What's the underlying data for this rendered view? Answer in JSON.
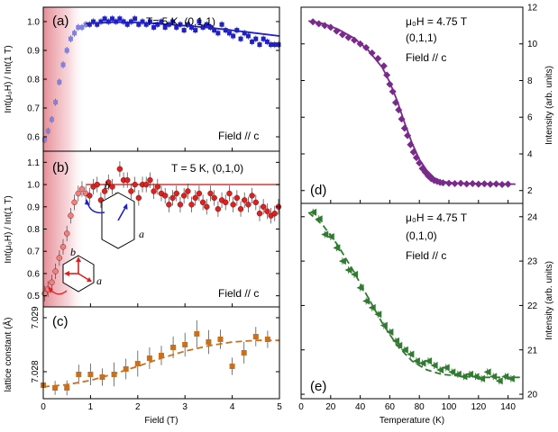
{
  "colors": {
    "blue": "#2020c8",
    "lightblue": "#8080e0",
    "red": "#dd2020",
    "lightred": "#f08080",
    "brown": "#c8701e",
    "purple": "#7a2a8c",
    "green": "#2e7d2e",
    "shade": "#d03040"
  },
  "chart_data": [
    {
      "id": "a",
      "type": "scatter",
      "panel_label": "(a)",
      "annotation": "T= 5 K, (0,1,1)",
      "field_label": "Field // c",
      "ylabel": "Int(μ₀H) / Int(1 T)",
      "xlim": [
        0,
        5
      ],
      "ylim": [
        0.55,
        1.05
      ],
      "yticks": [
        0.6,
        0.7,
        0.8,
        0.9,
        1.0
      ],
      "ytick_labels": [
        "0.6",
        "0.7",
        "0.8",
        "0.9",
        "1.0"
      ],
      "shaded_region": [
        0,
        0.9
      ],
      "points_faded": [
        [
          0.03,
          0.59
        ],
        [
          0.1,
          0.62
        ],
        [
          0.18,
          0.66
        ],
        [
          0.26,
          0.72
        ],
        [
          0.34,
          0.79
        ],
        [
          0.42,
          0.85
        ],
        [
          0.5,
          0.9
        ],
        [
          0.58,
          0.94
        ],
        [
          0.66,
          0.96
        ],
        [
          0.74,
          0.98
        ],
        [
          0.82,
          0.98
        ],
        [
          0.9,
          0.99
        ]
      ],
      "points": [
        [
          0.98,
          0.99
        ],
        [
          1.06,
          1.0
        ],
        [
          1.14,
          0.99
        ],
        [
          1.22,
          1.0
        ],
        [
          1.3,
          1.01
        ],
        [
          1.38,
          1.0
        ],
        [
          1.46,
          1.01
        ],
        [
          1.54,
          1.0
        ],
        [
          1.62,
          1.01
        ],
        [
          1.7,
          1.0
        ],
        [
          1.78,
          0.99
        ],
        [
          1.86,
          1.0
        ],
        [
          1.94,
          1.01
        ],
        [
          2.02,
          0.99
        ],
        [
          2.1,
          1.0
        ],
        [
          2.18,
          0.99
        ],
        [
          2.26,
          1.0
        ],
        [
          2.34,
          0.98
        ],
        [
          2.42,
          0.99
        ],
        [
          2.5,
          1.0
        ],
        [
          2.58,
          0.98
        ],
        [
          2.66,
          0.99
        ],
        [
          2.74,
          1.0
        ],
        [
          2.82,
          0.98
        ],
        [
          2.9,
          0.99
        ],
        [
          2.98,
          0.97
        ],
        [
          3.06,
          0.99
        ],
        [
          3.14,
          0.98
        ],
        [
          3.22,
          0.97
        ],
        [
          3.3,
          1.0
        ],
        [
          3.38,
          0.98
        ],
        [
          3.46,
          0.99
        ],
        [
          3.54,
          0.98
        ],
        [
          3.62,
          0.97
        ],
        [
          3.7,
          0.96
        ],
        [
          3.78,
          0.99
        ],
        [
          3.86,
          0.97
        ],
        [
          3.94,
          0.96
        ],
        [
          4.02,
          0.95
        ],
        [
          4.1,
          0.97
        ],
        [
          4.18,
          0.94
        ],
        [
          4.26,
          0.96
        ],
        [
          4.34,
          0.95
        ],
        [
          4.42,
          0.93
        ],
        [
          4.5,
          0.94
        ],
        [
          4.58,
          0.92
        ],
        [
          4.66,
          0.94
        ],
        [
          4.74,
          0.93
        ],
        [
          4.82,
          0.92
        ],
        [
          4.9,
          0.92
        ],
        [
          4.98,
          0.92
        ]
      ],
      "fit": [
        [
          0.9,
          0.993
        ],
        [
          1.5,
          0.998
        ],
        [
          2.0,
          0.997
        ],
        [
          2.5,
          0.992
        ],
        [
          3.0,
          0.986
        ],
        [
          3.5,
          0.979
        ],
        [
          4.0,
          0.97
        ],
        [
          4.5,
          0.96
        ],
        [
          5.0,
          0.95
        ]
      ]
    },
    {
      "id": "b",
      "type": "scatter",
      "panel_label": "(b)",
      "annotation": "T = 5 K, (0,1,0)",
      "field_label": "Field // c",
      "ylabel": "Int(μ₀H) / Int(1 T)",
      "xlim": [
        0,
        5
      ],
      "ylim": [
        0.45,
        1.15
      ],
      "yticks": [
        0.5,
        0.6,
        0.7,
        0.8,
        0.9,
        1.0,
        1.1
      ],
      "ytick_labels": [
        "0.5",
        "0.6",
        "0.7",
        "0.8",
        "0.9",
        "1.0",
        "1.1"
      ],
      "shaded_region": [
        0,
        0.9
      ],
      "reference_line": 1.0,
      "reference_line_from": 0.9,
      "points_faded": [
        [
          0.03,
          0.51
        ],
        [
          0.1,
          0.53
        ],
        [
          0.18,
          0.56
        ],
        [
          0.26,
          0.61
        ],
        [
          0.34,
          0.67
        ],
        [
          0.42,
          0.72
        ],
        [
          0.5,
          0.78
        ],
        [
          0.58,
          0.86
        ],
        [
          0.66,
          0.92
        ],
        [
          0.74,
          0.96
        ],
        [
          0.82,
          0.98
        ],
        [
          0.9,
          0.96
        ]
      ],
      "points": [
        [
          0.98,
          0.95
        ],
        [
          1.06,
          0.99
        ],
        [
          1.14,
          1.0
        ],
        [
          1.22,
          0.93
        ],
        [
          1.3,
          0.97
        ],
        [
          1.38,
          1.01
        ],
        [
          1.46,
          0.99
        ],
        [
          1.54,
          0.93
        ],
        [
          1.62,
          1.07
        ],
        [
          1.7,
          1.02
        ],
        [
          1.78,
          1.02
        ],
        [
          1.86,
          0.97
        ],
        [
          1.94,
          1.0
        ],
        [
          2.02,
          0.94
        ],
        [
          2.1,
          1.0
        ],
        [
          2.18,
          1.0
        ],
        [
          2.26,
          1.02
        ],
        [
          2.34,
          0.97
        ],
        [
          2.42,
          0.99
        ],
        [
          2.5,
          0.96
        ],
        [
          2.58,
          0.95
        ],
        [
          2.66,
          0.91
        ],
        [
          2.74,
          0.94
        ],
        [
          2.82,
          0.96
        ],
        [
          2.9,
          0.91
        ],
        [
          2.98,
          0.95
        ],
        [
          3.06,
          0.97
        ],
        [
          3.14,
          0.91
        ],
        [
          3.22,
          0.94
        ],
        [
          3.3,
          0.96
        ],
        [
          3.38,
          0.92
        ],
        [
          3.46,
          0.9
        ],
        [
          3.54,
          0.96
        ],
        [
          3.62,
          0.94
        ],
        [
          3.7,
          0.89
        ],
        [
          3.78,
          0.93
        ],
        [
          3.86,
          0.92
        ],
        [
          3.94,
          0.96
        ],
        [
          4.02,
          0.91
        ],
        [
          4.1,
          0.94
        ],
        [
          4.18,
          0.89
        ],
        [
          4.26,
          0.93
        ],
        [
          4.34,
          0.91
        ],
        [
          4.42,
          0.95
        ],
        [
          4.5,
          0.92
        ],
        [
          4.58,
          0.87
        ],
        [
          4.66,
          0.9
        ],
        [
          4.74,
          0.88
        ],
        [
          4.82,
          0.86
        ],
        [
          4.9,
          0.87
        ],
        [
          4.98,
          0.9
        ]
      ],
      "inset_axis_a": "a",
      "inset_axis_b": "b"
    },
    {
      "id": "c",
      "type": "scatter",
      "panel_label": "(c)",
      "ylabel": "lattice constant (Å)",
      "xlabel": "Field (T)",
      "xlim": [
        0,
        5
      ],
      "ylim": [
        7.0275,
        7.0292
      ],
      "yticks": [
        7.028,
        7.029
      ],
      "ytick_labels": [
        "7.028",
        "7.029"
      ],
      "xticks": [
        0,
        1,
        2,
        3,
        4,
        5
      ],
      "xtick_labels": [
        "0",
        "1",
        "2",
        "3",
        "4",
        "5"
      ],
      "points": [
        [
          0.0,
          7.02775
        ],
        [
          0.25,
          7.0277
        ],
        [
          0.5,
          7.0277
        ],
        [
          0.75,
          7.02795
        ],
        [
          1.0,
          7.02795
        ],
        [
          1.25,
          7.0279
        ],
        [
          1.5,
          7.02795
        ],
        [
          1.75,
          7.02805
        ],
        [
          2.0,
          7.02815
        ],
        [
          2.25,
          7.02825
        ],
        [
          2.5,
          7.0283
        ],
        [
          2.75,
          7.02845
        ],
        [
          3.0,
          7.0285
        ],
        [
          3.25,
          7.0287
        ],
        [
          3.5,
          7.02855
        ],
        [
          3.75,
          7.0286
        ],
        [
          4.0,
          7.0281
        ],
        [
          4.25,
          7.02835
        ],
        [
          4.5,
          7.02865
        ],
        [
          4.75,
          7.0286
        ]
      ],
      "errors": [
        0.00015,
        0.00013,
        0.00014,
        0.00018,
        0.0002,
        0.00016,
        0.00022,
        0.00019,
        0.00024,
        0.0002,
        0.00018,
        0.0002,
        0.00022,
        0.00025,
        0.00022,
        0.00018,
        0.00016,
        0.0002,
        0.00018,
        0.00016
      ],
      "fit": [
        [
          0.0,
          7.02772
        ],
        [
          0.5,
          7.02776
        ],
        [
          1.0,
          7.02784
        ],
        [
          1.5,
          7.02796
        ],
        [
          2.0,
          7.0281
        ],
        [
          2.5,
          7.02825
        ],
        [
          3.0,
          7.02838
        ],
        [
          3.5,
          7.02848
        ],
        [
          4.0,
          7.02855
        ],
        [
          4.5,
          7.02858
        ],
        [
          5.0,
          7.02858
        ]
      ]
    },
    {
      "id": "d",
      "type": "scatter",
      "panel_label": "(d)",
      "annotation_lines": [
        "μ₀H = 4.75 T",
        "(0,1,1)",
        "Field // c"
      ],
      "ylabel": "Intensity (arb. units)",
      "xlim": [
        0,
        150
      ],
      "ylim": [
        1.3,
        12
      ],
      "yticks": [
        2,
        4,
        6,
        8,
        10,
        12
      ],
      "ytick_labels": [
        "2",
        "4",
        "6",
        "8",
        "10",
        "12"
      ],
      "points": [
        [
          8,
          11.2
        ],
        [
          12,
          11.1
        ],
        [
          16,
          11.0
        ],
        [
          20,
          10.9
        ],
        [
          24,
          10.7
        ],
        [
          28,
          10.5
        ],
        [
          32,
          10.35
        ],
        [
          36,
          10.2
        ],
        [
          40,
          10.0
        ],
        [
          44,
          9.8
        ],
        [
          48,
          9.5
        ],
        [
          52,
          9.2
        ],
        [
          56,
          8.8
        ],
        [
          58,
          8.3
        ],
        [
          60,
          7.8
        ],
        [
          62,
          7.4
        ],
        [
          64,
          6.8
        ],
        [
          66,
          6.4
        ],
        [
          68,
          5.9
        ],
        [
          70,
          5.4
        ],
        [
          72,
          5.0
        ],
        [
          74,
          4.5
        ],
        [
          76,
          4.1
        ],
        [
          78,
          3.8
        ],
        [
          80,
          3.5
        ],
        [
          82,
          3.2
        ],
        [
          84,
          3.0
        ],
        [
          86,
          2.8
        ],
        [
          88,
          2.65
        ],
        [
          90,
          2.55
        ],
        [
          92,
          2.5
        ],
        [
          94,
          2.45
        ],
        [
          96,
          2.42
        ],
        [
          100,
          2.4
        ],
        [
          104,
          2.38
        ],
        [
          108,
          2.4
        ],
        [
          112,
          2.36
        ],
        [
          116,
          2.38
        ],
        [
          120,
          2.35
        ],
        [
          124,
          2.37
        ],
        [
          128,
          2.34
        ],
        [
          132,
          2.36
        ],
        [
          136,
          2.33
        ],
        [
          140,
          2.35
        ]
      ],
      "fit": [
        [
          5,
          11.25
        ],
        [
          15,
          11.1
        ],
        [
          25,
          10.8
        ],
        [
          35,
          10.35
        ],
        [
          45,
          9.7
        ],
        [
          55,
          8.7
        ],
        [
          60,
          7.9
        ],
        [
          65,
          6.9
        ],
        [
          70,
          5.7
        ],
        [
          75,
          4.6
        ],
        [
          80,
          3.7
        ],
        [
          85,
          3.1
        ],
        [
          90,
          2.7
        ],
        [
          95,
          2.5
        ],
        [
          105,
          2.4
        ],
        [
          120,
          2.38
        ],
        [
          145,
          2.35
        ]
      ]
    },
    {
      "id": "e",
      "type": "scatter",
      "panel_label": "(e)",
      "annotation_lines": [
        "μ₀H = 4.75 T",
        "(0,1,0)",
        "Field // c"
      ],
      "ylabel": "Intensity (arb. units)",
      "xlabel": "Temperature (K)",
      "xlim": [
        0,
        150
      ],
      "ylim": [
        19.9,
        24.3
      ],
      "yticks": [
        20,
        21,
        22,
        23,
        24
      ],
      "ytick_labels": [
        "20",
        "21",
        "22",
        "23",
        "24"
      ],
      "xticks": [
        0,
        20,
        40,
        60,
        80,
        100,
        120,
        140
      ],
      "xtick_labels": [
        "0",
        "20",
        "40",
        "60",
        "80",
        "100",
        "120",
        "140"
      ],
      "points": [
        [
          8,
          24.1
        ],
        [
          12,
          23.95
        ],
        [
          16,
          23.6
        ],
        [
          20,
          23.55
        ],
        [
          24,
          23.3
        ],
        [
          28,
          23.0
        ],
        [
          32,
          22.8
        ],
        [
          36,
          22.7
        ],
        [
          40,
          22.4
        ],
        [
          44,
          22.1
        ],
        [
          48,
          21.95
        ],
        [
          52,
          21.8
        ],
        [
          56,
          21.55
        ],
        [
          60,
          21.4
        ],
        [
          64,
          21.2
        ],
        [
          66,
          21.1
        ],
        [
          70,
          21.0
        ],
        [
          74,
          20.9
        ],
        [
          78,
          20.75
        ],
        [
          82,
          20.7
        ],
        [
          86,
          20.75
        ],
        [
          90,
          20.65
        ],
        [
          94,
          20.55
        ],
        [
          98,
          20.6
        ],
        [
          102,
          20.5
        ],
        [
          106,
          20.45
        ],
        [
          110,
          20.4
        ],
        [
          114,
          20.45
        ],
        [
          118,
          20.4
        ],
        [
          122,
          20.35
        ],
        [
          126,
          20.5
        ],
        [
          130,
          20.4
        ],
        [
          134,
          20.3
        ],
        [
          138,
          20.4
        ],
        [
          142,
          20.35
        ]
      ],
      "fit": [
        [
          5,
          24.1
        ],
        [
          15,
          23.8
        ],
        [
          25,
          23.35
        ],
        [
          35,
          22.8
        ],
        [
          45,
          22.2
        ],
        [
          55,
          21.6
        ],
        [
          65,
          21.1
        ],
        [
          75,
          20.75
        ],
        [
          85,
          20.55
        ],
        [
          95,
          20.45
        ],
        [
          110,
          20.4
        ],
        [
          125,
          20.38
        ],
        [
          148,
          20.38
        ]
      ]
    }
  ]
}
